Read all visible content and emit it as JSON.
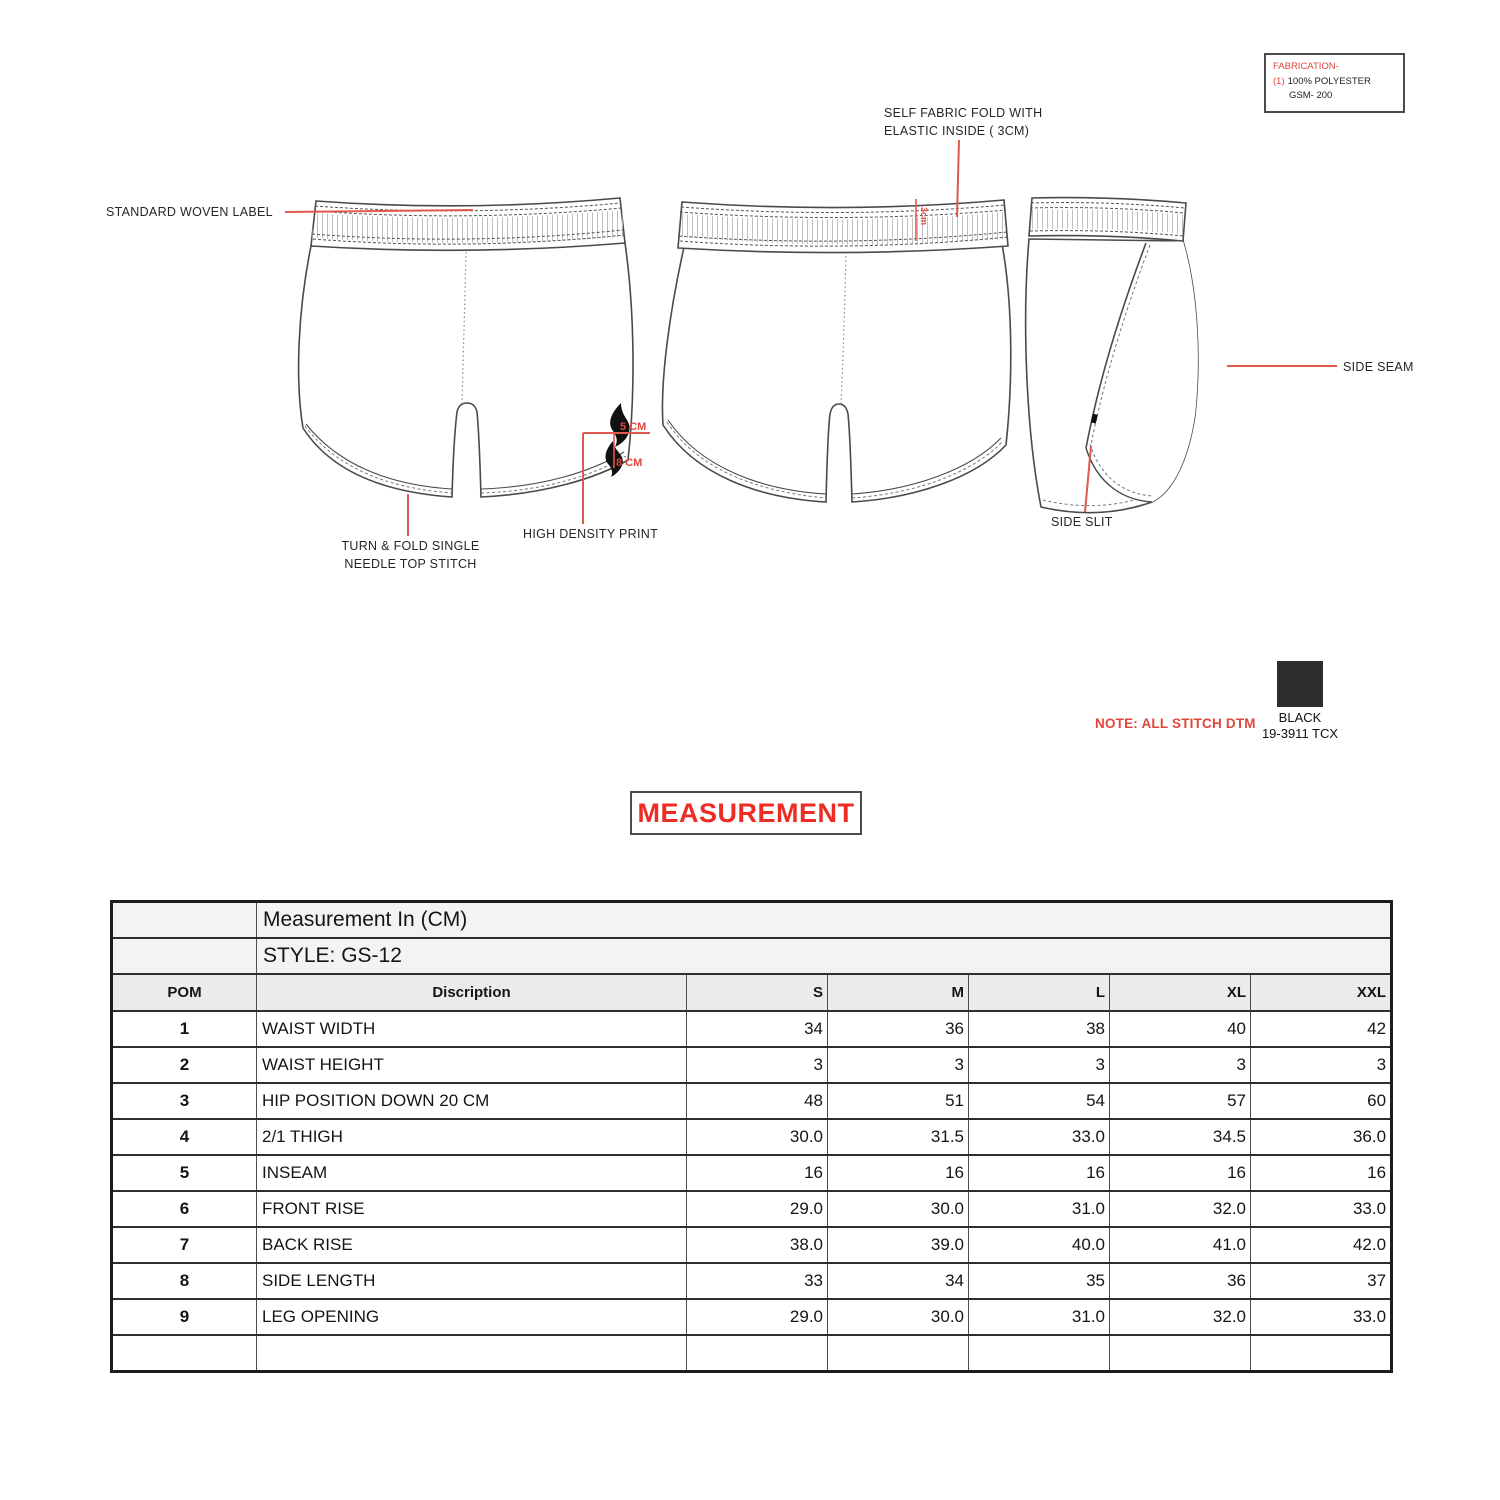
{
  "colors": {
    "annotation_red": "#e2453b",
    "title_red": "#ed2d24",
    "swatch_black": "#2d2d2d"
  },
  "fabrication": {
    "title": "FABRICATION-",
    "item_no": "(1)",
    "item_text": "100% POLYESTER",
    "gsm": "GSM- 200"
  },
  "annotations": {
    "standard_woven_label": "STANDARD WOVEN LABEL",
    "self_fabric_fold_line1": "SELF FABRIC FOLD WITH",
    "self_fabric_fold_line2": "ELASTIC INSIDE ( 3CM)",
    "turn_fold_line1": "TURN & FOLD SINGLE",
    "turn_fold_line2": "NEEDLE TOP STITCH",
    "high_density_print": "HIGH DENSITY PRINT",
    "side_seam": "SIDE SEAM",
    "side_slit": "SIDE SLIT",
    "note": "NOTE: ALL STITCH DTM",
    "dim_5cm": "5 CM",
    "dim_8cm": "8 CM",
    "dim_3cm": "3cm"
  },
  "swatch": {
    "name": "BLACK",
    "code": "19-3911 TCX"
  },
  "measurement_title": "MEASUREMENT",
  "table": {
    "group_title": "Measurement In (CM)",
    "style_label": "STYLE: GS-12",
    "columns": [
      "POM",
      "Discription",
      "S",
      "M",
      "L",
      "XL",
      "XXL"
    ],
    "rows": [
      {
        "pom": "1",
        "desc": "WAIST WIDTH",
        "values": [
          "34",
          "36",
          "38",
          "40",
          "42"
        ]
      },
      {
        "pom": "2",
        "desc": "WAIST HEIGHT",
        "values": [
          "3",
          "3",
          "3",
          "3",
          "3"
        ]
      },
      {
        "pom": "3",
        "desc": " HIP POSITION DOWN 20 CM",
        "values": [
          "48",
          "51",
          "54",
          "57",
          "60"
        ]
      },
      {
        "pom": "4",
        "desc": "2/1 THIGH",
        "values": [
          "30.0",
          "31.5",
          "33.0",
          "34.5",
          "36.0"
        ]
      },
      {
        "pom": "5",
        "desc": "INSEAM",
        "values": [
          "16",
          "16",
          "16",
          "16",
          "16"
        ]
      },
      {
        "pom": "6",
        "desc": "FRONT RISE",
        "values": [
          "29.0",
          "30.0",
          "31.0",
          "32.0",
          "33.0"
        ]
      },
      {
        "pom": "7",
        "desc": "BACK RISE",
        "values": [
          "38.0",
          "39.0",
          "40.0",
          "41.0",
          "42.0"
        ]
      },
      {
        "pom": "8",
        "desc": "SIDE LENGTH",
        "values": [
          "33",
          "34",
          "35",
          "36",
          "37"
        ]
      },
      {
        "pom": "9",
        "desc": "LEG OPENING",
        "values": [
          "29.0",
          "30.0",
          "31.0",
          "32.0",
          "33.0"
        ]
      },
      {
        "pom": "",
        "desc": "",
        "values": [
          "",
          "",
          "",
          "",
          ""
        ]
      }
    ]
  }
}
